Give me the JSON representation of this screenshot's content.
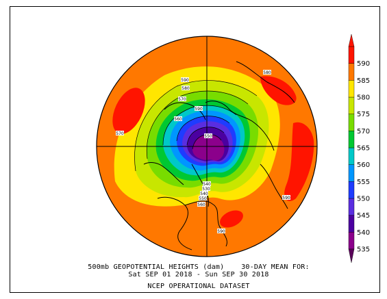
{
  "chart_data": {
    "type": "heatmap",
    "title": "500mb GEOPOTENTIAL HEIGHTS (dam)    30-DAY MEAN FOR:",
    "subtitle": "Sat SEP 01 2018 - Sun SEP 30 2018",
    "source": "NCEP OPERATIONAL DATASET",
    "colorbar": {
      "levels": [
        535,
        540,
        545,
        550,
        555,
        560,
        565,
        570,
        575,
        580,
        585,
        590
      ],
      "colors": [
        "#8b008b",
        "#4b00a0",
        "#5a2ee0",
        "#1e3cff",
        "#0096ff",
        "#00c8c8",
        "#00c832",
        "#78dc00",
        "#c8e600",
        "#ffe600",
        "#ff7800",
        "#ff1400"
      ]
    },
    "contour_labels": [
      "590",
      "580",
      "570",
      "560",
      "550",
      "540",
      "530",
      "540",
      "550",
      "560",
      "570",
      "580",
      "590",
      "590",
      "590"
    ]
  }
}
